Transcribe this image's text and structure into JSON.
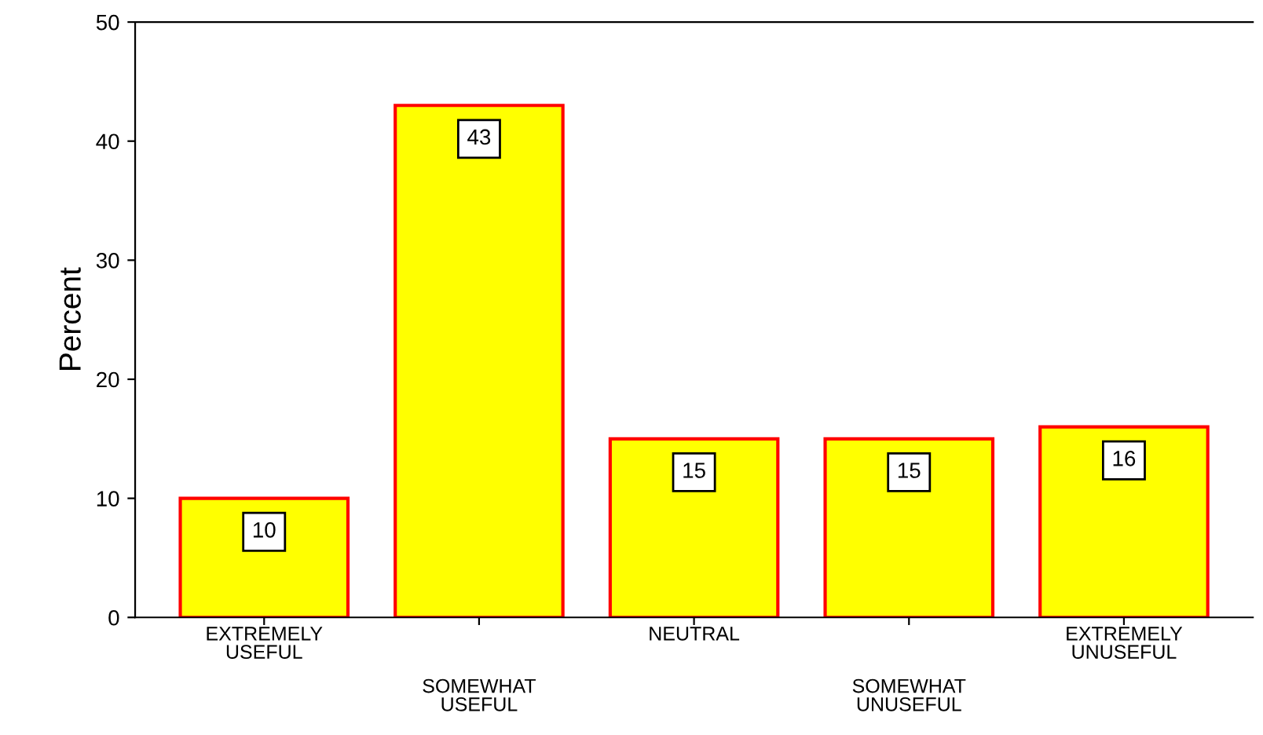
{
  "chart_data": {
    "type": "bar",
    "ylabel": "Percent",
    "categories": [
      "EXTREMELY\nUSEFUL",
      "SOMEWHAT\nUSEFUL",
      "NEUTRAL",
      "SOMEWHAT\nUNUSEFUL",
      "EXTREMELY\nUNUSEFUL"
    ],
    "values": [
      10,
      43,
      15,
      15,
      16
    ],
    "color": "#ffff00",
    "ylim": [
      0,
      50
    ],
    "yticks": [
      0,
      10,
      20,
      30,
      40,
      50
    ],
    "grid": false,
    "data_labels": true
  }
}
